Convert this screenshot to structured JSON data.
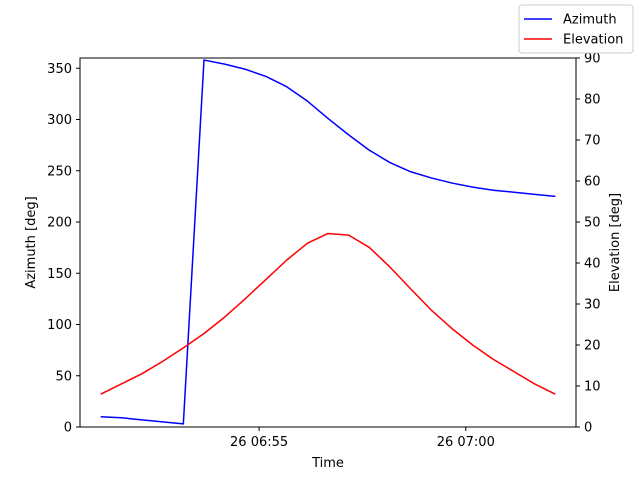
{
  "chart_data": {
    "type": "line",
    "title": "",
    "xlabel": "Time",
    "ylabel_left": "Azimuth [deg]",
    "ylabel_right": "Elevation [deg]",
    "x_ticks": [
      {
        "time": "06:55",
        "label": "26 06:55"
      },
      {
        "time": "07:00",
        "label": "26 07:00"
      }
    ],
    "x_range": [
      "06:50:40",
      "07:02:40"
    ],
    "left_axis": {
      "ylim": [
        0,
        360
      ],
      "ticks": [
        0,
        50,
        100,
        150,
        200,
        250,
        300,
        350
      ]
    },
    "right_axis": {
      "ylim": [
        0,
        90
      ],
      "ticks": [
        0,
        10,
        20,
        30,
        40,
        50,
        60,
        70,
        80,
        90
      ]
    },
    "grid": false,
    "legend_position": "upper-right (outside plot)",
    "series": [
      {
        "name": "Azimuth",
        "axis": "left",
        "color": "#0000ff",
        "x": [
          "06:51:10",
          "06:51:40",
          "06:52:10",
          "06:52:40",
          "06:53:10",
          "06:53:40",
          "06:54:10",
          "06:54:40",
          "06:55:10",
          "06:55:40",
          "06:56:10",
          "06:56:40",
          "06:57:10",
          "06:57:40",
          "06:58:10",
          "06:58:40",
          "06:59:10",
          "06:59:40",
          "07:00:10",
          "07:00:40",
          "07:01:10",
          "07:01:40",
          "07:02:10"
        ],
        "values": [
          10,
          9,
          7,
          5,
          3,
          358,
          354,
          349,
          342,
          332,
          318,
          301,
          285,
          270,
          258,
          249,
          243,
          238,
          234,
          231,
          229,
          227,
          225
        ]
      },
      {
        "name": "Elevation",
        "axis": "right",
        "color": "#ff0000",
        "x": [
          "06:51:10",
          "06:51:40",
          "06:52:10",
          "06:52:40",
          "06:53:10",
          "06:53:40",
          "06:54:10",
          "06:54:40",
          "06:55:10",
          "06:55:40",
          "06:56:10",
          "06:56:40",
          "06:57:10",
          "06:57:40",
          "06:58:10",
          "06:58:40",
          "06:59:10",
          "06:59:40",
          "07:00:10",
          "07:00:40",
          "07:01:10",
          "07:01:40",
          "07:02:10"
        ],
        "values": [
          8,
          10.5,
          13,
          16,
          19.3,
          22.8,
          26.8,
          31.3,
          36,
          40.7,
          44.8,
          47.2,
          46.8,
          43.8,
          39,
          33.7,
          28.5,
          24,
          20,
          16.5,
          13.5,
          10.5,
          8
        ]
      }
    ]
  }
}
